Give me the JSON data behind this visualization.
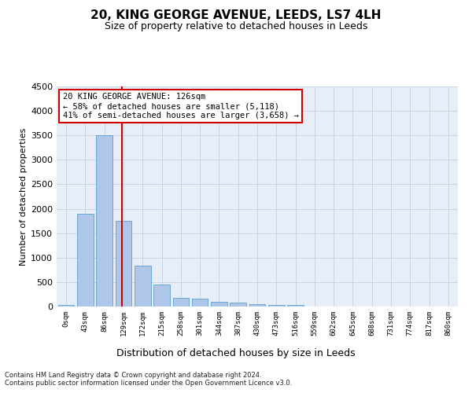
{
  "title": "20, KING GEORGE AVENUE, LEEDS, LS7 4LH",
  "subtitle": "Size of property relative to detached houses in Leeds",
  "xlabel": "Distribution of detached houses by size in Leeds",
  "ylabel": "Number of detached properties",
  "footnote": "Contains HM Land Registry data © Crown copyright and database right 2024.\nContains public sector information licensed under the Open Government Licence v3.0.",
  "bar_labels": [
    "0sqm",
    "43sqm",
    "86sqm",
    "129sqm",
    "172sqm",
    "215sqm",
    "258sqm",
    "301sqm",
    "344sqm",
    "387sqm",
    "430sqm",
    "473sqm",
    "516sqm",
    "559sqm",
    "602sqm",
    "645sqm",
    "688sqm",
    "731sqm",
    "774sqm",
    "817sqm",
    "860sqm"
  ],
  "bar_values": [
    30,
    1900,
    3500,
    1750,
    840,
    450,
    175,
    165,
    100,
    75,
    50,
    40,
    30,
    0,
    0,
    0,
    0,
    0,
    0,
    0,
    0
  ],
  "bar_color": "#aec6e8",
  "bar_edge_color": "#5a9fd4",
  "highlight_bar_index": 3,
  "highlight_color": "#cc0000",
  "ylim": [
    0,
    4500
  ],
  "yticks": [
    0,
    500,
    1000,
    1500,
    2000,
    2500,
    3000,
    3500,
    4000,
    4500
  ],
  "annotation_title": "20 KING GEORGE AVENUE: 126sqm",
  "annotation_line1": "← 58% of detached houses are smaller (5,118)",
  "annotation_line2": "41% of semi-detached houses are larger (3,658) →",
  "annotation_box_color": "#ffffff",
  "annotation_border_color": "#cc0000",
  "bg_color": "#e8eef8",
  "grid_color": "#c8d4e8",
  "title_fontsize": 11,
  "subtitle_fontsize": 9,
  "ylabel_fontsize": 8,
  "xlabel_fontsize": 9,
  "footnote_fontsize": 6,
  "annotation_fontsize": 7.5,
  "ytick_fontsize": 8,
  "xtick_fontsize": 6.5
}
